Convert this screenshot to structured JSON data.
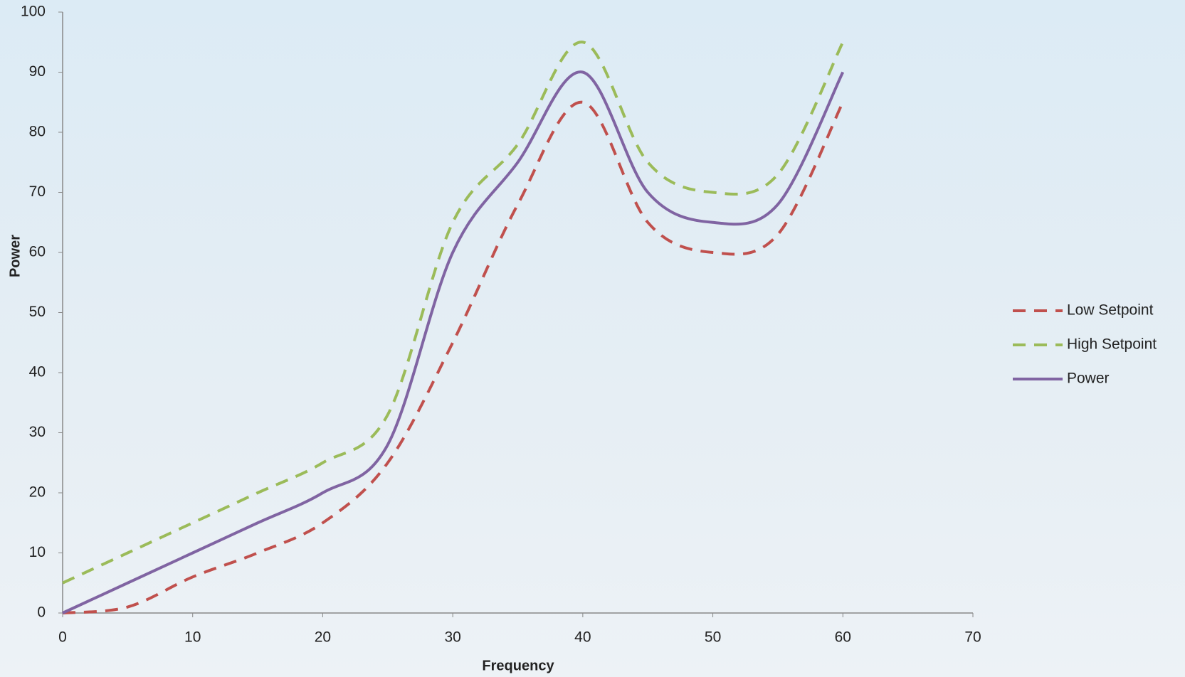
{
  "chart_data": {
    "type": "line",
    "x_label": "Frequency",
    "y_label": "Power",
    "x": [
      0,
      5,
      10,
      15,
      20,
      25,
      30,
      35,
      40,
      45,
      50,
      55,
      60
    ],
    "series": [
      {
        "name": "Low Setpoint",
        "color": "#c0504d",
        "dash": true,
        "values": [
          0,
          1,
          6,
          10,
          15,
          25,
          45,
          68,
          85,
          65,
          60,
          63,
          85
        ]
      },
      {
        "name": "High Setpoint",
        "color": "#9bbb59",
        "dash": true,
        "values": [
          5,
          10,
          15,
          20,
          25,
          33,
          65,
          78,
          95,
          75,
          70,
          73,
          95
        ]
      },
      {
        "name": "Power",
        "color": "#8064a2",
        "dash": false,
        "values": [
          0,
          5,
          10,
          15,
          20,
          28,
          60,
          75,
          90,
          70,
          65,
          68,
          90
        ]
      }
    ],
    "xlim": [
      0,
      70
    ],
    "xticks": [
      0,
      10,
      20,
      30,
      40,
      50,
      60,
      70
    ],
    "ylim": [
      0,
      100
    ],
    "yticks": [
      0,
      10,
      20,
      30,
      40,
      50,
      60,
      70,
      80,
      90,
      100
    ],
    "grid": false,
    "legend": "right"
  }
}
